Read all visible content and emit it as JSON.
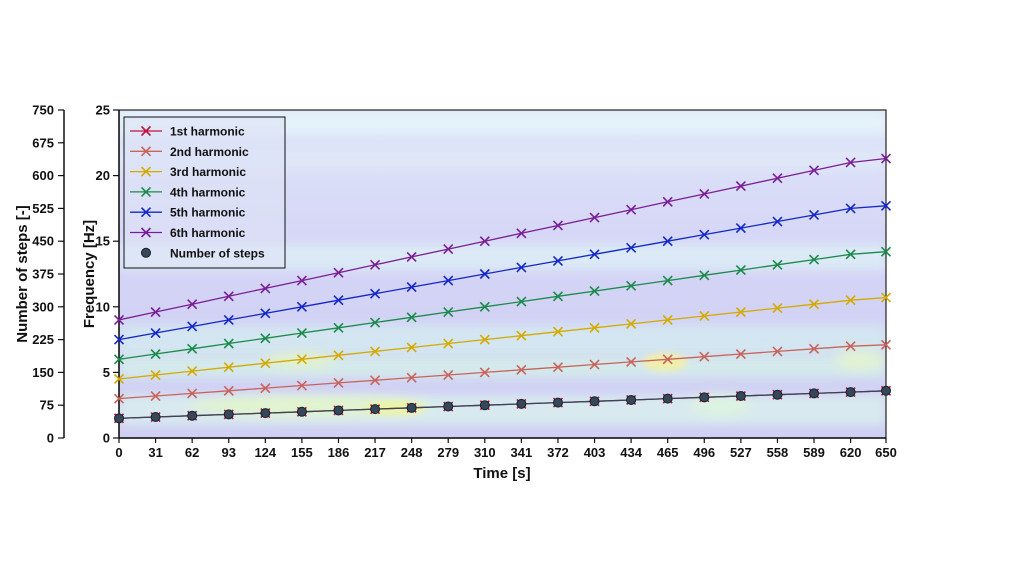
{
  "chart_data": {
    "type": "line",
    "title": "",
    "xlabel": "Time [s]",
    "ylabel": "Frequency [Hz]",
    "ylabel_secondary": "Number of steps [-]",
    "xlim": [
      0,
      650
    ],
    "ylim": [
      0,
      25
    ],
    "ylim_secondary": [
      0,
      750
    ],
    "x_ticks": [
      "0",
      "31",
      "62",
      "93",
      "124",
      "155",
      "186",
      "217",
      "248",
      "279",
      "310",
      "341",
      "372",
      "403",
      "434",
      "465",
      "496",
      "527",
      "558",
      "589",
      "620",
      "650"
    ],
    "y_ticks": [
      "0",
      "5",
      "10",
      "15",
      "20",
      "25"
    ],
    "y_ticks_secondary": [
      "0",
      "75",
      "150",
      "225",
      "300",
      "375",
      "450",
      "525",
      "600",
      "675",
      "750"
    ],
    "grid": false,
    "legend_position": "top-left",
    "background": "spectrogram",
    "x": [
      0,
      31,
      62,
      93,
      124,
      155,
      186,
      217,
      248,
      279,
      310,
      341,
      372,
      403,
      434,
      465,
      496,
      527,
      558,
      589,
      620,
      650
    ],
    "series": [
      {
        "name": "1st harmonic",
        "axis": "left",
        "marker": "x",
        "color": "#c0143c",
        "values": [
          1.5,
          1.6,
          1.7,
          1.8,
          1.9,
          2.0,
          2.1,
          2.2,
          2.3,
          2.4,
          2.5,
          2.6,
          2.7,
          2.8,
          2.9,
          3.0,
          3.1,
          3.2,
          3.3,
          3.4,
          3.5,
          3.6
        ]
      },
      {
        "name": "2nd harmonic",
        "axis": "left",
        "marker": "x",
        "color": "#c8645a",
        "values": [
          3.0,
          3.2,
          3.4,
          3.6,
          3.8,
          4.0,
          4.2,
          4.4,
          4.6,
          4.8,
          5.0,
          5.2,
          5.4,
          5.6,
          5.8,
          6.0,
          6.2,
          6.4,
          6.6,
          6.8,
          7.0,
          7.1
        ]
      },
      {
        "name": "3rd harmonic",
        "axis": "left",
        "marker": "x",
        "color": "#d4aa00",
        "values": [
          4.5,
          4.8,
          5.1,
          5.4,
          5.7,
          6.0,
          6.3,
          6.6,
          6.9,
          7.2,
          7.5,
          7.8,
          8.1,
          8.4,
          8.7,
          9.0,
          9.3,
          9.6,
          9.9,
          10.2,
          10.5,
          10.7
        ]
      },
      {
        "name": "4th harmonic",
        "axis": "left",
        "marker": "x",
        "color": "#1a8a4a",
        "values": [
          6.0,
          6.4,
          6.8,
          7.2,
          7.6,
          8.0,
          8.4,
          8.8,
          9.2,
          9.6,
          10.0,
          10.4,
          10.8,
          11.2,
          11.6,
          12.0,
          12.4,
          12.8,
          13.2,
          13.6,
          14.0,
          14.2
        ]
      },
      {
        "name": "5th harmonic",
        "axis": "left",
        "marker": "x",
        "color": "#1428c8",
        "values": [
          7.5,
          8.0,
          8.5,
          9.0,
          9.5,
          10.0,
          10.5,
          11.0,
          11.5,
          12.0,
          12.5,
          13.0,
          13.5,
          14.0,
          14.5,
          15.0,
          15.5,
          16.0,
          16.5,
          17.0,
          17.5,
          17.7
        ]
      },
      {
        "name": "6th harmonic",
        "axis": "left",
        "marker": "x",
        "color": "#7a1e96",
        "values": [
          9.0,
          9.6,
          10.2,
          10.8,
          11.4,
          12.0,
          12.6,
          13.2,
          13.8,
          14.4,
          15.0,
          15.6,
          16.2,
          16.8,
          17.4,
          18.0,
          18.6,
          19.2,
          19.8,
          20.4,
          21.0,
          21.3
        ]
      },
      {
        "name": "Number of steps",
        "axis": "right",
        "marker": "circle",
        "color": "#37475a",
        "values": [
          45,
          48,
          51,
          54,
          57,
          60,
          63,
          66,
          69,
          72,
          75,
          78,
          81,
          84,
          87,
          90,
          93,
          96,
          99,
          102,
          105,
          108
        ]
      }
    ]
  }
}
